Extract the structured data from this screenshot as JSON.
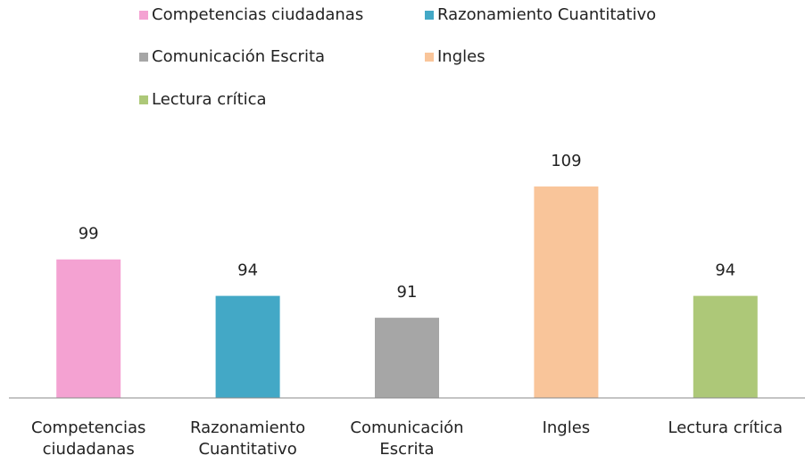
{
  "chart_data": {
    "type": "bar",
    "categories": [
      "Competencias ciudadanas",
      "Razonamiento Cuantitativo",
      "Comunicación Escrita",
      "Ingles",
      "Lectura crítica"
    ],
    "values": [
      99,
      94,
      91,
      109,
      94
    ],
    "colors": [
      "#f4a2d2",
      "#43a8c6",
      "#a6a6a6",
      "#f9c59a",
      "#adc878"
    ],
    "ylim": [
      80,
      115
    ]
  }
}
